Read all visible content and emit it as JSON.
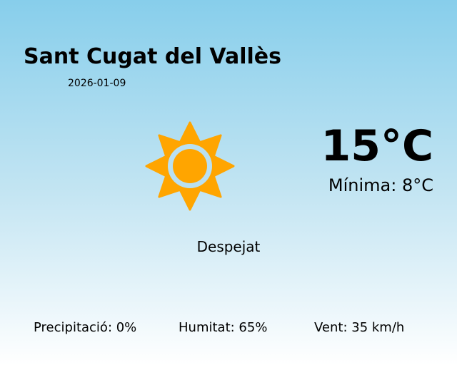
{
  "city": "Sant Cugat del Vallès",
  "date": "2026-01-09",
  "temperature": "15°C",
  "minimum": "Mínima: 8°C",
  "condition": "Despejat",
  "condition_icon": "sun-icon",
  "stats": {
    "precipitation": "Precipitació: 0%",
    "humidity": "Humitat: 65%",
    "wind": "Vent: 35 km/h"
  },
  "colors": {
    "sun": "#ffa500",
    "sky_top": "#87ceeb",
    "sky_bottom": "#ffffff"
  }
}
